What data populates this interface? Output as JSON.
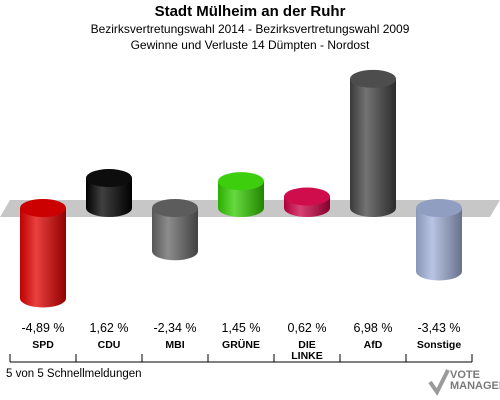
{
  "header": {
    "title": "Stadt Mülheim an der Ruhr",
    "subtitle1": "Bezirksvertretungswahl 2014 - Bezirksvertretungswahl 2009",
    "subtitle2": "Gewinne und Verluste 14 Dümpten - Nordost"
  },
  "footer": {
    "text": "5 von 5 Schnellmeldungen"
  },
  "logo": {
    "line1": "VOTE",
    "line2": "MANAGER"
  },
  "chart_data": {
    "type": "bar",
    "categories": [
      "SPD",
      "CDU",
      "MBI",
      "GRÜNE",
      "DIE LINKE",
      "AfD",
      "Sonstige"
    ],
    "category_lines": [
      [
        "SPD"
      ],
      [
        "CDU"
      ],
      [
        "MBI"
      ],
      [
        "GRÜNE"
      ],
      [
        "DIE",
        "LINKE"
      ],
      [
        "AfD"
      ],
      [
        "Sonstige"
      ]
    ],
    "values": [
      -4.89,
      1.62,
      -2.34,
      1.45,
      0.62,
      6.98,
      -3.43
    ],
    "value_labels": [
      "-4,89 %",
      "1,62 %",
      "-2,34 %",
      "1,45 %",
      "0,62 %",
      "6,98 %",
      "-3,43 %"
    ],
    "colors": [
      "#e10000",
      "#000000",
      "#666666",
      "#33cc00",
      "#cc0044",
      "#444444",
      "#a0b0d8"
    ],
    "baseline": 0
  }
}
